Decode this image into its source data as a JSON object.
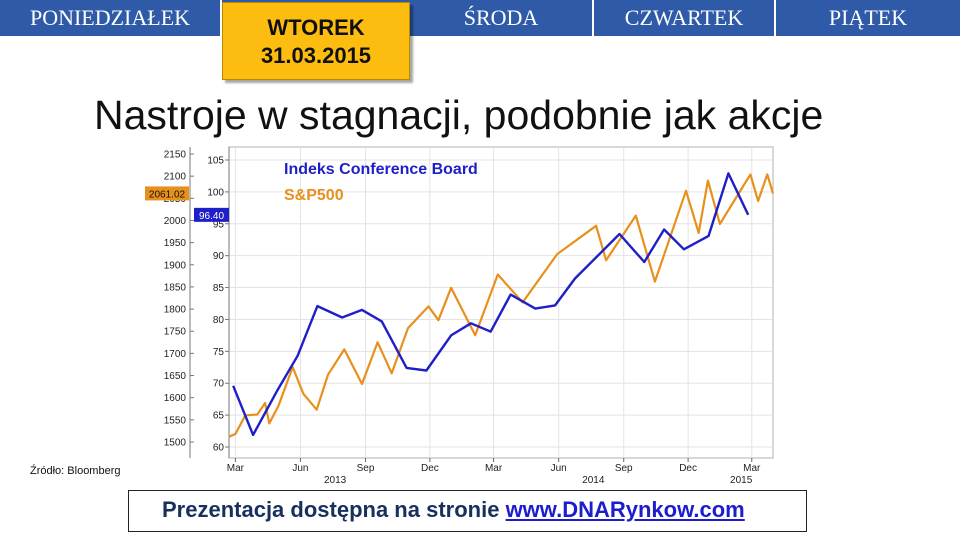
{
  "days": {
    "mon": "PONIEDZIAŁEK",
    "tue": "WTOREK",
    "tue_date": "31.03.2015",
    "wed": "ŚRODA",
    "thu": "CZWARTEK",
    "fri": "PIĄTEK"
  },
  "headline": "Nastroje w stagnacji, podobnie jak akcje",
  "source": "Źródło: Bloomberg",
  "footer": {
    "text": "Prezentacja dostępna na stronie",
    "link": "www.DNARynkow.com"
  },
  "colors": {
    "topbar": "#2e5aa8",
    "active_day": "#fdbd10",
    "conference_board": "#1f1fc8",
    "sp500": "#e8901c"
  },
  "chart_data": {
    "type": "line",
    "title": "",
    "x_tick_labels": [
      "Mar",
      "Jun",
      "Sep",
      "Dec",
      "Mar",
      "Jun",
      "Sep",
      "Dec",
      "Mar"
    ],
    "x_year_labels": [
      "2013",
      "2014",
      "2015"
    ],
    "x_range": [
      "2013-02-20",
      "2015-03-31"
    ],
    "y_left": {
      "ticks": [
        1500,
        1550,
        1600,
        1650,
        1700,
        1750,
        1800,
        1850,
        1900,
        1950,
        2000,
        2050,
        2100,
        2150
      ],
      "range": [
        1500,
        2150
      ]
    },
    "y_right": {
      "ticks": [
        60,
        65,
        70,
        75,
        80,
        85,
        90,
        95,
        100,
        105
      ],
      "range": [
        60,
        105
      ]
    },
    "grid": true,
    "legend_placement": "top-left",
    "last_value_labels": {
      "sp500": "2061.02",
      "conference_board": "96.40"
    },
    "series": [
      {
        "name": "Indeks Conference Board",
        "axis": "right",
        "points": [
          [
            "2013-02-26",
            69.6
          ],
          [
            "2013-03-26",
            61.9
          ],
          [
            "2013-04-30",
            69.0
          ],
          [
            "2013-05-28",
            74.3
          ],
          [
            "2013-06-25",
            82.1
          ],
          [
            "2013-07-30",
            80.3
          ],
          [
            "2013-08-27",
            81.5
          ],
          [
            "2013-09-24",
            79.7
          ],
          [
            "2013-10-29",
            72.4
          ],
          [
            "2013-11-26",
            72.0
          ],
          [
            "2013-12-31",
            77.5
          ],
          [
            "2014-01-28",
            79.4
          ],
          [
            "2014-02-25",
            78.1
          ],
          [
            "2014-03-25",
            83.9
          ],
          [
            "2014-04-29",
            81.7
          ],
          [
            "2014-05-27",
            82.2
          ],
          [
            "2014-06-24",
            86.4
          ],
          [
            "2014-07-29",
            90.3
          ],
          [
            "2014-08-26",
            93.4
          ],
          [
            "2014-09-30",
            89.0
          ],
          [
            "2014-10-28",
            94.1
          ],
          [
            "2014-11-25",
            91.0
          ],
          [
            "2014-12-30",
            93.1
          ],
          [
            "2015-01-27",
            102.9
          ],
          [
            "2015-02-24",
            96.4
          ]
        ]
      },
      {
        "name": "S&P500",
        "axis": "left",
        "points": [
          [
            "2013-02-20",
            1512
          ],
          [
            "2013-03-01",
            1518
          ],
          [
            "2013-03-15",
            1560
          ],
          [
            "2013-04-01",
            1562
          ],
          [
            "2013-04-12",
            1588
          ],
          [
            "2013-04-18",
            1542
          ],
          [
            "2013-05-01",
            1582
          ],
          [
            "2013-05-21",
            1669
          ],
          [
            "2013-06-05",
            1609
          ],
          [
            "2013-06-24",
            1573
          ],
          [
            "2013-07-10",
            1652
          ],
          [
            "2013-08-02",
            1709
          ],
          [
            "2013-08-27",
            1631
          ],
          [
            "2013-09-18",
            1725
          ],
          [
            "2013-10-08",
            1655
          ],
          [
            "2013-10-31",
            1757
          ],
          [
            "2013-11-29",
            1806
          ],
          [
            "2013-12-13",
            1775
          ],
          [
            "2013-12-31",
            1848
          ],
          [
            "2014-02-03",
            1741
          ],
          [
            "2014-03-07",
            1878
          ],
          [
            "2014-04-11",
            1815
          ],
          [
            "2014-05-30",
            1924
          ],
          [
            "2014-07-24",
            1988
          ],
          [
            "2014-08-07",
            1910
          ],
          [
            "2014-09-18",
            2011
          ],
          [
            "2014-10-15",
            1862
          ],
          [
            "2014-11-28",
            2067
          ],
          [
            "2014-12-16",
            1972
          ],
          [
            "2014-12-29",
            2090
          ],
          [
            "2015-01-15",
            1992
          ],
          [
            "2015-02-27",
            2104
          ],
          [
            "2015-03-10",
            2044
          ],
          [
            "2015-03-23",
            2104
          ],
          [
            "2015-03-31",
            2061
          ]
        ]
      }
    ]
  }
}
